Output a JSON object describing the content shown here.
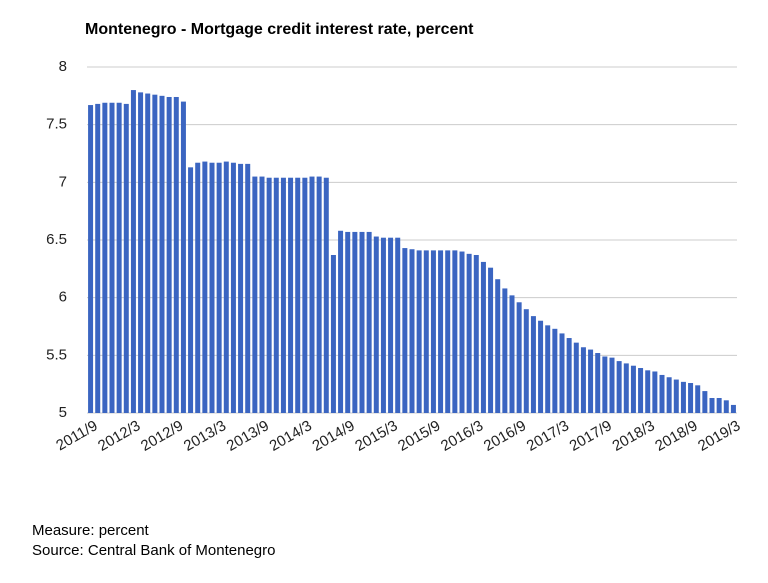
{
  "chart_data": {
    "type": "bar",
    "title": "Montenegro - Mortgage credit interest rate, percent",
    "categories": [
      "2011/9",
      null,
      null,
      null,
      null,
      null,
      "2012/3",
      null,
      null,
      null,
      null,
      null,
      "2012/9",
      null,
      null,
      null,
      null,
      null,
      "2013/3",
      null,
      null,
      null,
      null,
      null,
      "2013/9",
      null,
      null,
      null,
      null,
      null,
      "2014/3",
      null,
      null,
      null,
      null,
      null,
      "2014/9",
      null,
      null,
      null,
      null,
      null,
      "2015/3",
      null,
      null,
      null,
      null,
      null,
      "2015/9",
      null,
      null,
      null,
      null,
      null,
      "2016/3",
      null,
      null,
      null,
      null,
      null,
      "2016/9",
      null,
      null,
      null,
      null,
      null,
      "2017/3",
      null,
      null,
      null,
      null,
      null,
      "2017/9",
      null,
      null,
      null,
      null,
      null,
      "2018/3",
      null,
      null,
      null,
      null,
      null,
      "2018/9",
      null,
      null,
      null,
      null,
      null,
      "2019/3"
    ],
    "values": [
      7.67,
      7.68,
      7.69,
      7.69,
      7.69,
      7.68,
      7.8,
      7.78,
      7.77,
      7.76,
      7.75,
      7.74,
      7.74,
      7.7,
      7.13,
      7.17,
      7.18,
      7.17,
      7.17,
      7.18,
      7.17,
      7.16,
      7.16,
      7.05,
      7.05,
      7.04,
      7.04,
      7.04,
      7.04,
      7.04,
      7.04,
      7.05,
      7.05,
      7.04,
      6.37,
      6.58,
      6.57,
      6.57,
      6.57,
      6.57,
      6.53,
      6.52,
      6.52,
      6.52,
      6.43,
      6.42,
      6.41,
      6.41,
      6.41,
      6.41,
      6.41,
      6.41,
      6.4,
      6.38,
      6.37,
      6.31,
      6.26,
      6.16,
      6.08,
      6.02,
      5.96,
      5.9,
      5.84,
      5.8,
      5.76,
      5.73,
      5.69,
      5.65,
      5.61,
      5.57,
      5.55,
      5.52,
      5.49,
      5.48,
      5.45,
      5.43,
      5.41,
      5.39,
      5.37,
      5.36,
      5.33,
      5.31,
      5.29,
      5.27,
      5.26,
      5.24,
      5.19,
      5.13,
      5.13,
      5.11,
      5.07
    ],
    "color": "#3b65c1",
    "ylim": [
      5,
      8
    ],
    "yticks": [
      5,
      5.5,
      6,
      6.5,
      7,
      7.5,
      8
    ],
    "grid": true,
    "measure": "Measure: percent",
    "source": "Source: Central Bank of Montenegro"
  }
}
